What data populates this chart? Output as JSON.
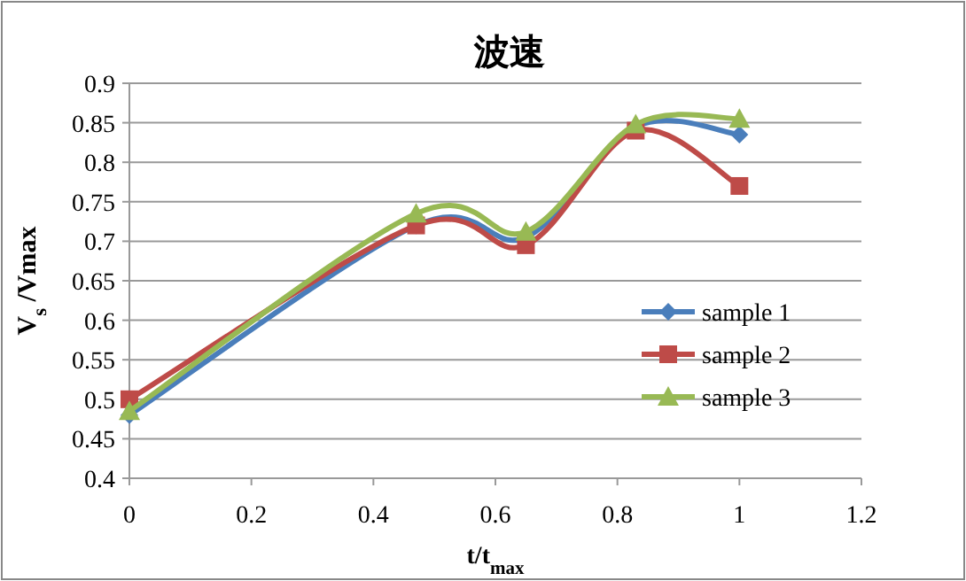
{
  "chart_data": {
    "type": "line",
    "title": "波速",
    "xlabel": "t/t$_{max}$",
    "ylabel": "V$_{s}$ /Vmax",
    "x": [
      0,
      0.47,
      0.65,
      0.83,
      1.0
    ],
    "series": [
      {
        "name": "sample 1",
        "color": "#4a7ebb",
        "marker": "diamond",
        "values": [
          0.48,
          0.72,
          0.705,
          0.845,
          0.835
        ]
      },
      {
        "name": "sample 2",
        "color": "#be4b48",
        "marker": "square",
        "values": [
          0.5,
          0.72,
          0.695,
          0.84,
          0.77
        ]
      },
      {
        "name": "sample 3",
        "color": "#98b954",
        "marker": "triangle",
        "values": [
          0.485,
          0.735,
          0.712,
          0.848,
          0.855
        ]
      }
    ],
    "xlim": [
      0,
      1.2
    ],
    "xticks": [
      0,
      0.2,
      0.4,
      0.6,
      0.8,
      1,
      1.2
    ],
    "ylim": [
      0.4,
      0.9
    ],
    "yticks": [
      0.4,
      0.45,
      0.5,
      0.55,
      0.6,
      0.65,
      0.7,
      0.75,
      0.8,
      0.85,
      0.9
    ],
    "grid": "y",
    "legend": "right"
  }
}
